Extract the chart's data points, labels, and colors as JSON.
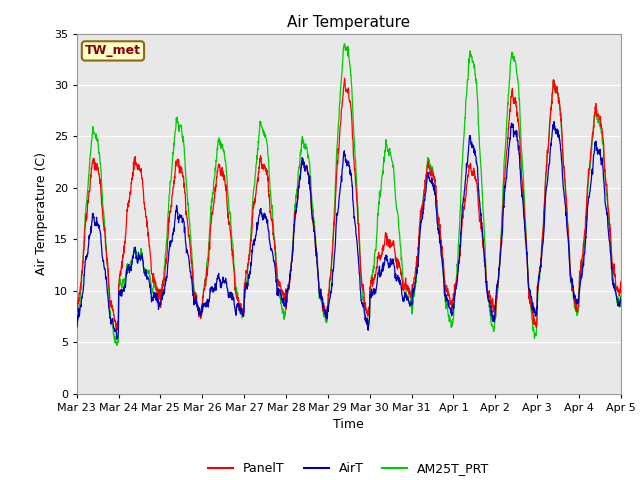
{
  "title": "Air Temperature",
  "ylabel": "Air Temperature (C)",
  "xlabel": "Time",
  "ylim": [
    0,
    35
  ],
  "yticks": [
    0,
    5,
    10,
    15,
    20,
    25,
    30,
    35
  ],
  "station_label": "TW_met",
  "line_colors": {
    "PanelT": "#ff0000",
    "AirT": "#0000bb",
    "AM25T_PRT": "#00cc00"
  },
  "legend_labels": [
    "PanelT",
    "AirT",
    "AM25T_PRT"
  ],
  "bg_color": "#e8e8e8",
  "date_labels": [
    "Mar 23",
    "Mar 24",
    "Mar 25",
    "Mar 26",
    "Mar 27",
    "Mar 28",
    "Mar 29",
    "Mar 30",
    "Mar 31",
    "Apr 1",
    "Apr 2",
    "Apr 3",
    "Apr 4",
    "Apr 5"
  ],
  "n_days": 13,
  "pts_per_day": 144,
  "panel_peaks": [
    22.5,
    22.5,
    22.5,
    22.0,
    22.5,
    22.5,
    30.0,
    15.0,
    22.0,
    22.0,
    29.0,
    30.0,
    27.5
  ],
  "panel_peaks2": [
    13.5,
    12.0,
    13.5,
    11.5,
    22.5,
    9.5,
    19.5,
    0.0,
    19.5,
    19.5,
    27.0,
    27.5,
    26.0
  ],
  "panel_troughs": [
    7.0,
    10.0,
    8.0,
    8.0,
    9.5,
    8.0,
    8.0,
    10.0,
    9.0,
    8.5,
    7.0,
    8.5,
    10.0
  ],
  "air_peaks": [
    17.0,
    13.5,
    17.5,
    11.0,
    17.5,
    22.5,
    23.0,
    13.0,
    21.0,
    24.5,
    26.0,
    26.0,
    24.0
  ],
  "air_peaks2": [
    10.5,
    10.5,
    11.0,
    9.0,
    11.0,
    9.0,
    20.5,
    0.0,
    19.5,
    19.5,
    14.0,
    25.5,
    24.0
  ],
  "air_troughs": [
    6.0,
    9.0,
    8.0,
    8.0,
    9.0,
    8.0,
    7.0,
    9.0,
    8.0,
    7.5,
    8.0,
    9.0,
    9.0
  ],
  "green_peaks": [
    25.5,
    13.5,
    26.5,
    24.5,
    26.0,
    24.5,
    34.0,
    24.0,
    22.5,
    33.0,
    33.0,
    30.0,
    27.0
  ],
  "green_peaks2": [
    13.0,
    12.5,
    13.5,
    13.0,
    13.0,
    9.0,
    19.5,
    0.0,
    22.5,
    22.5,
    27.5,
    27.5,
    23.0
  ],
  "green_troughs": [
    5.0,
    10.0,
    8.0,
    8.0,
    8.0,
    7.5,
    7.0,
    9.0,
    7.0,
    6.5,
    6.0,
    8.0,
    9.0
  ]
}
